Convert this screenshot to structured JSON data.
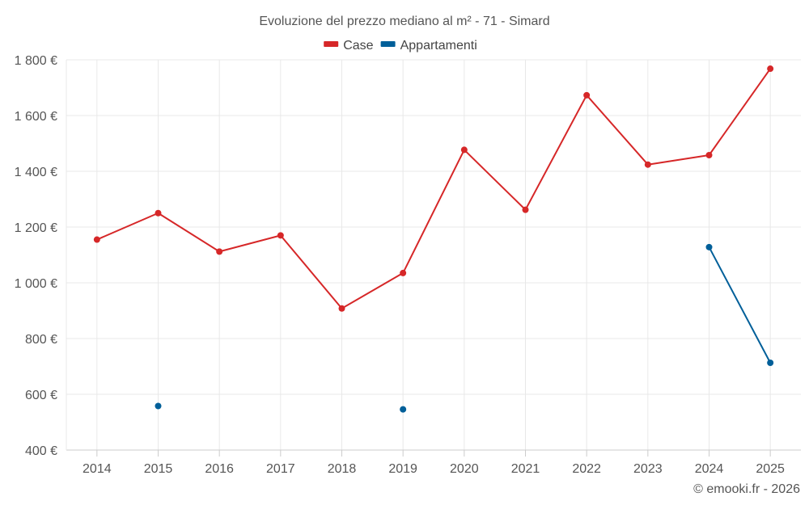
{
  "chart_data": {
    "type": "line",
    "title": "Evoluzione del prezzo mediano al m² - 71 - Simard",
    "categories": [
      "2014",
      "2015",
      "2016",
      "2017",
      "2018",
      "2019",
      "2020",
      "2021",
      "2022",
      "2023",
      "2024",
      "2025"
    ],
    "series": [
      {
        "name": "Case",
        "color": "#d62728",
        "values": [
          1155,
          1250,
          1112,
          1170,
          908,
          1035,
          1477,
          1262,
          1673,
          1424,
          1458,
          1768
        ]
      },
      {
        "name": "Appartamenti",
        "color": "#005f99",
        "values": [
          null,
          558,
          null,
          null,
          null,
          546,
          null,
          null,
          null,
          null,
          1128,
          713
        ]
      }
    ],
    "ylim": [
      400,
      1800
    ],
    "yticks": [
      400,
      600,
      800,
      1000,
      1200,
      1400,
      1600,
      1800
    ],
    "ytick_labels": [
      "400 €",
      "600 €",
      "800 €",
      "1 000 €",
      "1 200 €",
      "1 400 €",
      "1 600 €",
      "1 800 €"
    ],
    "legend_position": "top-center",
    "grid": true,
    "credit": "© emooki.fr - 2026"
  }
}
